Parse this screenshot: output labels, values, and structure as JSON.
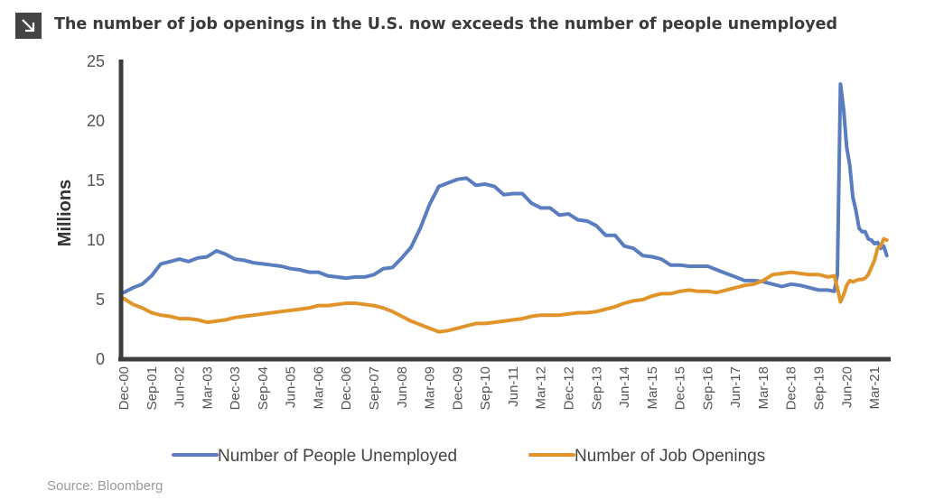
{
  "title": "The number of job openings in the U.S. now exceeds the number of people unemployed",
  "title_icon": "arrow-down-right-icon",
  "source": "Source: Bloomberg",
  "colors": {
    "unemployed": "#5a7dbf",
    "openings": "#e1942a",
    "axis": "#3d3d3d"
  },
  "chart_data": {
    "type": "line",
    "title": "The number of job openings in the U.S. now exceeds the number of people unemployed",
    "xlabel": "",
    "ylabel": "Millions",
    "ylim": [
      0,
      25
    ],
    "yticks": [
      0,
      5,
      10,
      15,
      20,
      25
    ],
    "grid": false,
    "legend_position": "bottom",
    "xtick_labels": [
      "Dec-00",
      "Sep-01",
      "Jun-02",
      "Mar-03",
      "Dec-03",
      "Sep-04",
      "Jun-05",
      "Mar-06",
      "Dec-06",
      "Sep-07",
      "Jun-08",
      "Mar-09",
      "Dec-09",
      "Sep-10",
      "Jun-11",
      "Mar-12",
      "Dec-12",
      "Sep-13",
      "Jun-14",
      "Mar-15",
      "Dec-15",
      "Sep-16",
      "Jun-17",
      "Mar-18",
      "Dec-18",
      "Sep-19",
      "Jun-20",
      "Mar-21"
    ],
    "x": [
      "Dec-00",
      "Mar-01",
      "Jun-01",
      "Sep-01",
      "Dec-01",
      "Mar-02",
      "Jun-02",
      "Sep-02",
      "Dec-02",
      "Mar-03",
      "Jun-03",
      "Sep-03",
      "Dec-03",
      "Mar-04",
      "Jun-04",
      "Sep-04",
      "Dec-04",
      "Mar-05",
      "Jun-05",
      "Sep-05",
      "Dec-05",
      "Mar-06",
      "Jun-06",
      "Sep-06",
      "Dec-06",
      "Mar-07",
      "Jun-07",
      "Sep-07",
      "Dec-07",
      "Mar-08",
      "Jun-08",
      "Sep-08",
      "Dec-08",
      "Mar-09",
      "Jun-09",
      "Sep-09",
      "Dec-09",
      "Mar-10",
      "Jun-10",
      "Sep-10",
      "Dec-10",
      "Mar-11",
      "Jun-11",
      "Sep-11",
      "Dec-11",
      "Mar-12",
      "Jun-12",
      "Sep-12",
      "Dec-12",
      "Mar-13",
      "Jun-13",
      "Sep-13",
      "Dec-13",
      "Mar-14",
      "Jun-14",
      "Sep-14",
      "Dec-14",
      "Mar-15",
      "Jun-15",
      "Sep-15",
      "Dec-15",
      "Mar-16",
      "Jun-16",
      "Sep-16",
      "Dec-16",
      "Mar-17",
      "Jun-17",
      "Sep-17",
      "Dec-17",
      "Mar-18",
      "Jun-18",
      "Sep-18",
      "Dec-18",
      "Mar-19",
      "Jun-19",
      "Sep-19",
      "Dec-19",
      "Feb-20",
      "Mar-20",
      "Apr-20",
      "May-20",
      "Jun-20",
      "Jul-20",
      "Aug-20",
      "Sep-20",
      "Oct-20",
      "Nov-20",
      "Dec-20",
      "Jan-21",
      "Feb-21",
      "Mar-21",
      "Apr-21",
      "May-21",
      "Jun-21",
      "Jul-21"
    ],
    "series": [
      {
        "name": "Number of People Unemployed",
        "color": "#5a7dbf",
        "values": [
          5.6,
          6.0,
          6.3,
          7.0,
          8.0,
          8.2,
          8.4,
          8.2,
          8.5,
          8.6,
          9.1,
          8.8,
          8.4,
          8.3,
          8.1,
          8.0,
          7.9,
          7.8,
          7.6,
          7.5,
          7.3,
          7.3,
          7.0,
          6.9,
          6.8,
          6.9,
          6.9,
          7.1,
          7.6,
          7.7,
          8.5,
          9.4,
          11.0,
          13.0,
          14.5,
          14.8,
          15.1,
          15.2,
          14.6,
          14.7,
          14.5,
          13.8,
          13.9,
          13.9,
          13.1,
          12.7,
          12.7,
          12.1,
          12.2,
          11.7,
          11.6,
          11.2,
          10.4,
          10.4,
          9.5,
          9.3,
          8.7,
          8.6,
          8.4,
          7.9,
          7.9,
          7.8,
          7.8,
          7.8,
          7.5,
          7.2,
          6.9,
          6.6,
          6.6,
          6.5,
          6.3,
          6.1,
          6.3,
          6.2,
          6.0,
          5.8,
          5.8,
          5.7,
          7.1,
          23.1,
          21.0,
          17.8,
          16.3,
          13.6,
          12.5,
          11.0,
          10.7,
          10.7,
          10.1,
          10.0,
          9.7,
          9.8,
          9.3,
          9.5,
          8.7
        ]
      },
      {
        "name": "Number of Job Openings",
        "color": "#e1942a",
        "values": [
          5.1,
          4.6,
          4.3,
          3.9,
          3.7,
          3.6,
          3.4,
          3.4,
          3.3,
          3.1,
          3.2,
          3.3,
          3.5,
          3.6,
          3.7,
          3.8,
          3.9,
          4.0,
          4.1,
          4.2,
          4.3,
          4.5,
          4.5,
          4.6,
          4.7,
          4.7,
          4.6,
          4.5,
          4.3,
          4.0,
          3.6,
          3.2,
          2.9,
          2.6,
          2.3,
          2.4,
          2.6,
          2.8,
          3.0,
          3.0,
          3.1,
          3.2,
          3.3,
          3.4,
          3.6,
          3.7,
          3.7,
          3.7,
          3.8,
          3.9,
          3.9,
          4.0,
          4.2,
          4.4,
          4.7,
          4.9,
          5.0,
          5.3,
          5.5,
          5.5,
          5.7,
          5.8,
          5.7,
          5.7,
          5.6,
          5.8,
          6.0,
          6.2,
          6.3,
          6.6,
          7.1,
          7.2,
          7.3,
          7.2,
          7.1,
          7.1,
          6.9,
          7.0,
          6.0,
          4.8,
          5.4,
          6.2,
          6.6,
          6.5,
          6.6,
          6.7,
          6.7,
          6.8,
          7.1,
          7.7,
          8.3,
          9.3,
          9.5,
          10.1,
          10.0
        ]
      }
    ]
  }
}
